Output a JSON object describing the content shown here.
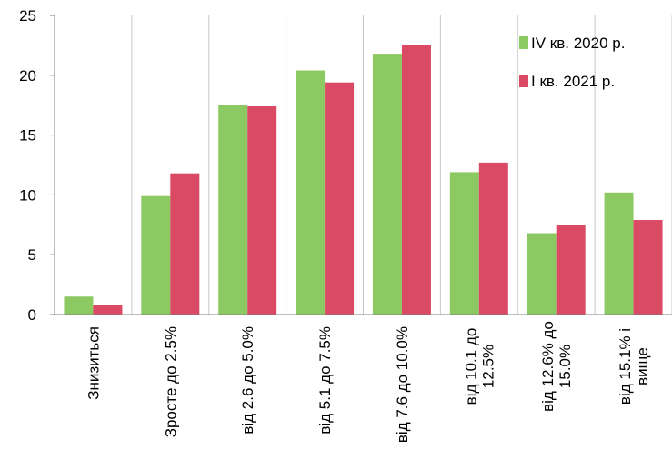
{
  "chart_data": {
    "type": "bar",
    "categories": [
      "Знизиться",
      "Зросте до 2.5%",
      "від 2.6 до 5.0%",
      "від 5.1 до 7.5%",
      "від 7.6 до 10.0%",
      "від 10.1 до 12.5%",
      "від 12.6% до 15.0%",
      "від 15.1% і вище"
    ],
    "category_label_lines": [
      [
        "Знизиться"
      ],
      [
        "Зросте до 2.5%"
      ],
      [
        "від 2.6 до 5.0%"
      ],
      [
        "від 5.1 до 7.5%"
      ],
      [
        "від 7.6 до 10.0%"
      ],
      [
        "від 10.1 до",
        "12.5%"
      ],
      [
        "від 12.6% до",
        "15.0%"
      ],
      [
        "від 15.1% і",
        "вище"
      ]
    ],
    "series": [
      {
        "name": "IV кв. 2020 р.",
        "color": "#8DC963",
        "values": [
          1.5,
          9.9,
          17.5,
          20.4,
          21.8,
          11.9,
          6.8,
          10.2
        ]
      },
      {
        "name": "I кв. 2021 р.",
        "color": "#DB4A64",
        "values": [
          0.8,
          11.8,
          17.4,
          19.4,
          22.5,
          12.7,
          7.5,
          7.9
        ]
      }
    ],
    "ylim": [
      0,
      25
    ],
    "yticks": [
      0,
      5,
      10,
      15,
      20,
      25
    ],
    "grid": true,
    "legend_position": "top-right",
    "title": "",
    "xlabel": "",
    "ylabel": ""
  }
}
